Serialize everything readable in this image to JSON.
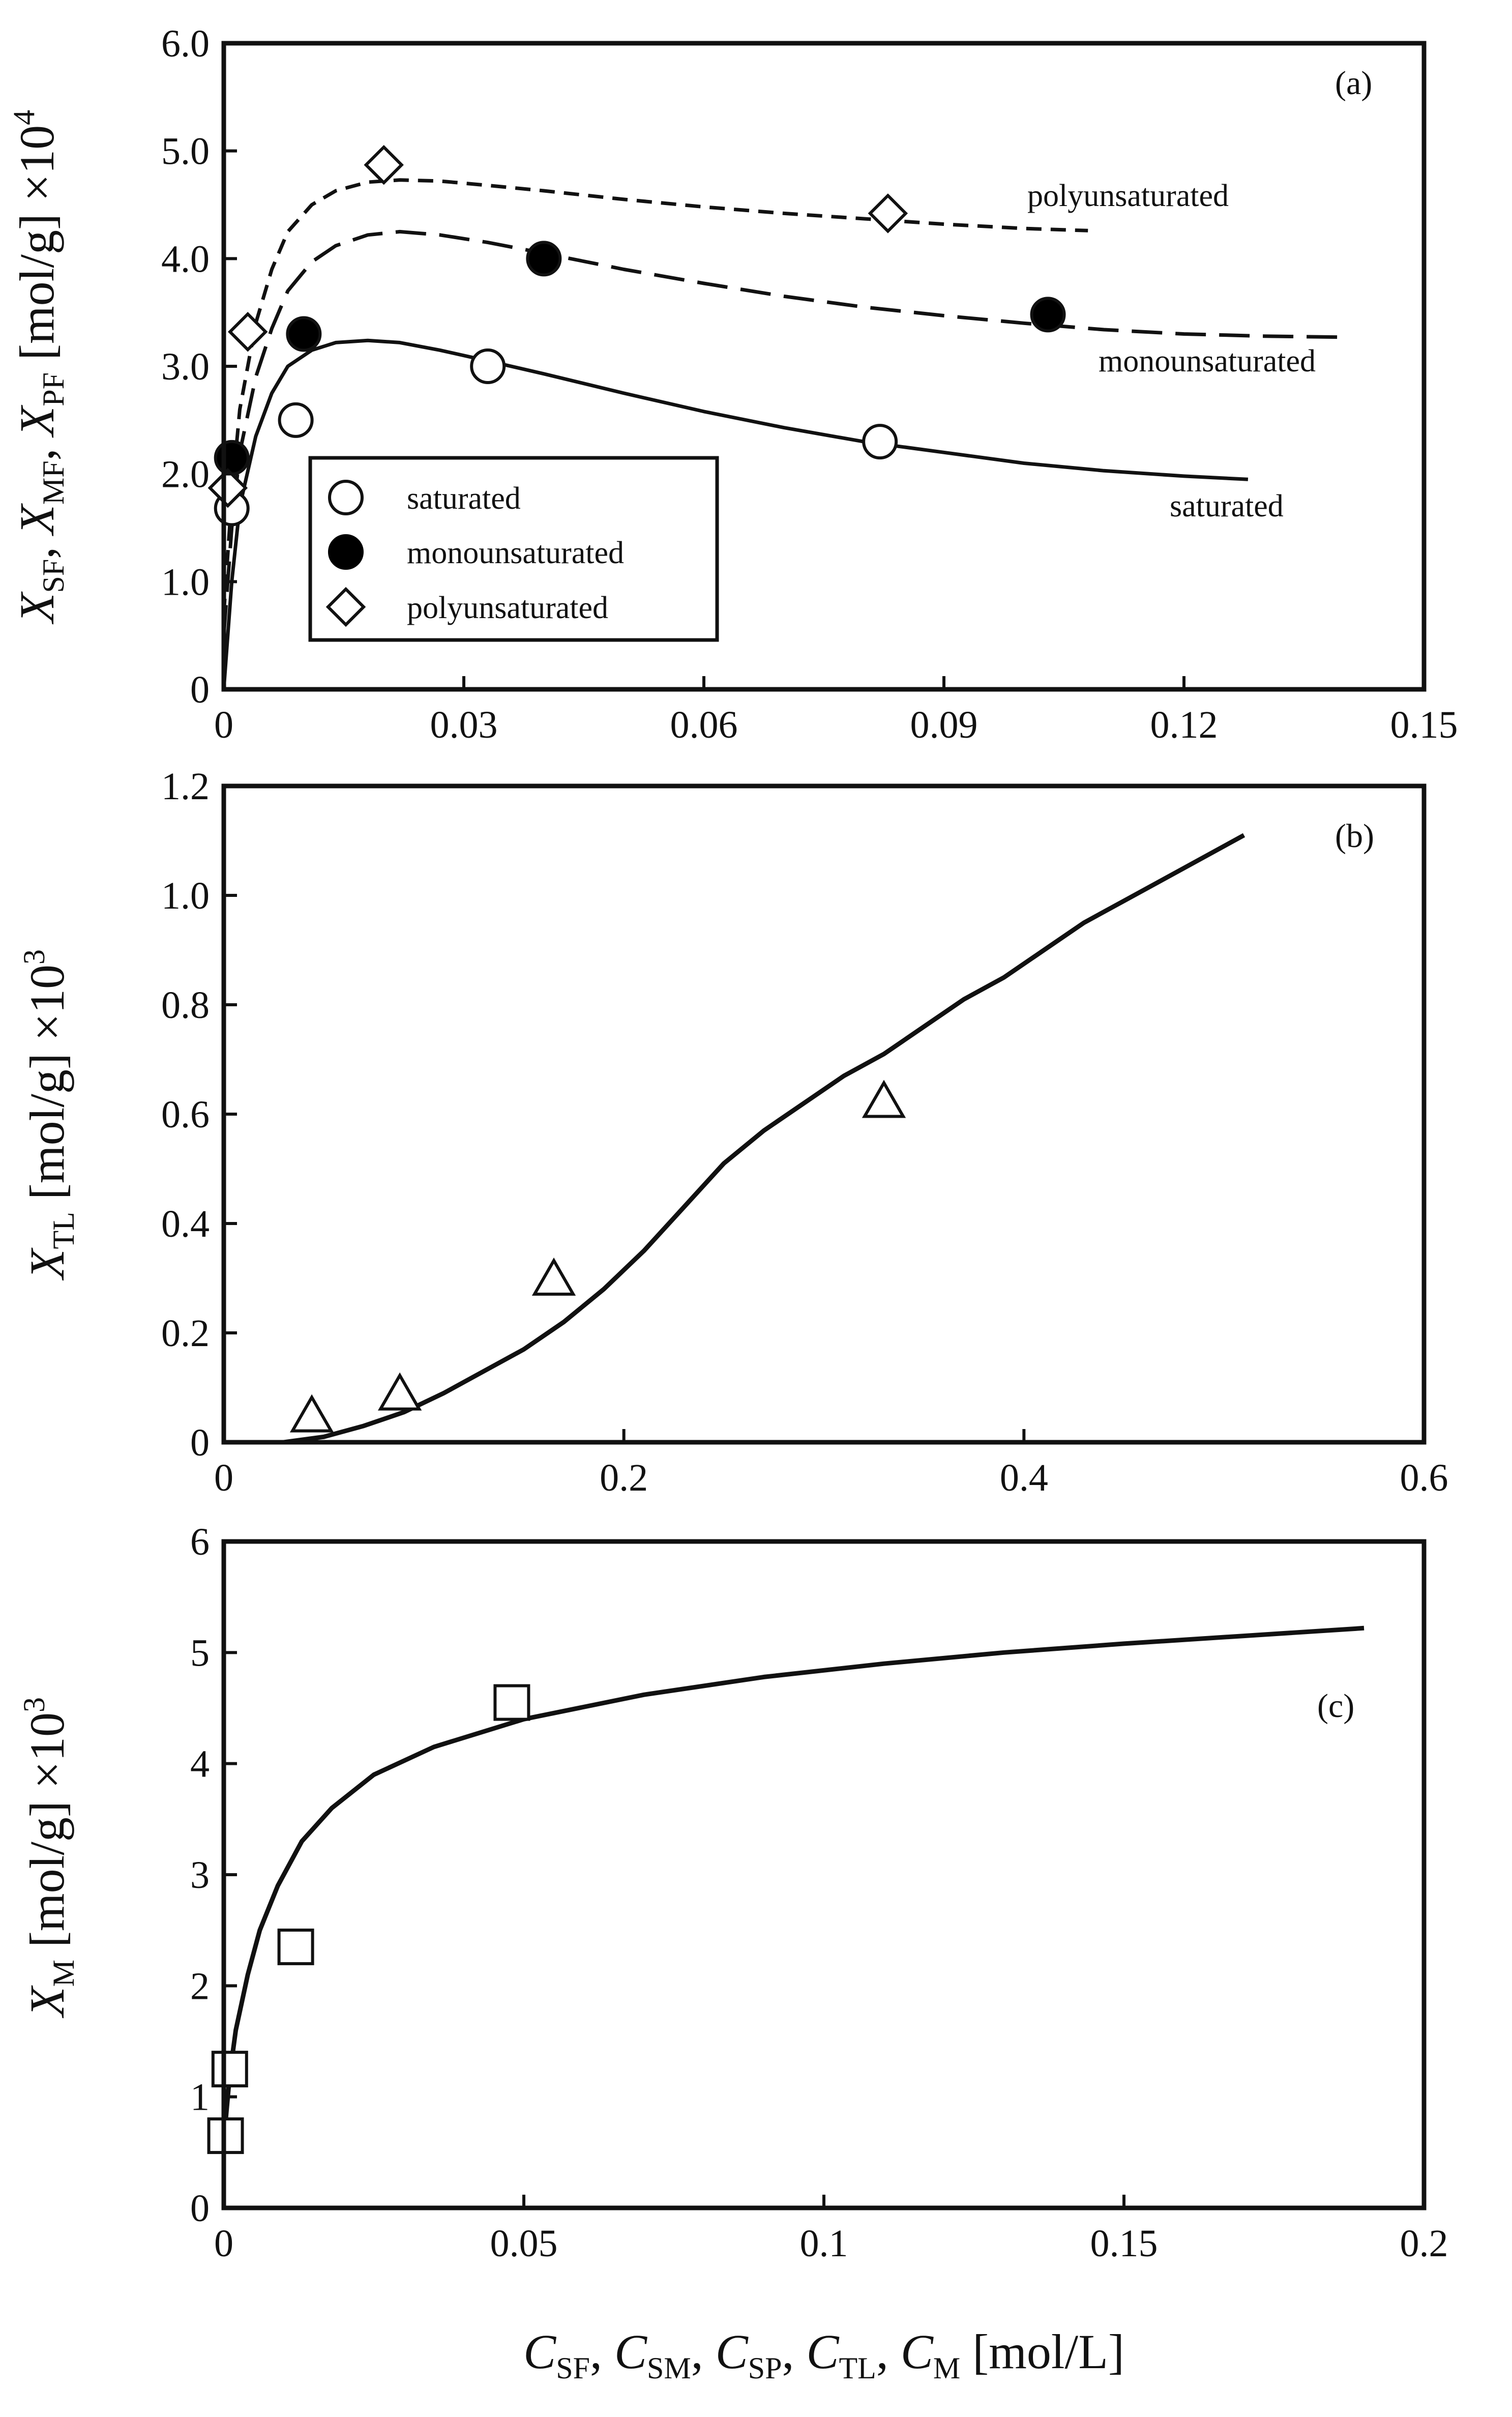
{
  "chart_data": [
    {
      "id": "a",
      "type": "scatter",
      "panel_label": "(a)",
      "xlim": [
        0,
        0.15
      ],
      "ylim": [
        0,
        6.0
      ],
      "xticks": [
        "0",
        "0.03",
        "0.06",
        "0.09",
        "0.12",
        "0.15"
      ],
      "yticks": [
        "0",
        "1.0",
        "2.0",
        "3.0",
        "4.0",
        "5.0",
        "6.0"
      ],
      "ylabel": "X_SF, X_MF, X_PF [mol/g] ×10^4",
      "ylabel_parts": {
        "X1": "X",
        "s1": "SF",
        "X2": "X",
        "s2": "MF",
        "X3": "X",
        "s3": "PF",
        "unit": "[mol/g] ×10",
        "exp": "4"
      },
      "legend_position": "lower-left",
      "legend": [
        {
          "label": "saturated",
          "marker": "open-circle"
        },
        {
          "label": "monounsaturated",
          "marker": "filled-circle"
        },
        {
          "label": "polyunsaturated",
          "marker": "open-diamond"
        }
      ],
      "series": [
        {
          "name": "saturated",
          "marker": "open-circle",
          "points": [
            [
              0.001,
              1.68
            ],
            [
              0.009,
              2.5
            ],
            [
              0.033,
              3.0
            ],
            [
              0.082,
              2.3
            ]
          ],
          "curve_style": "solid",
          "curve_label": "saturated",
          "curve": [
            [
              0,
              0
            ],
            [
              0.001,
              1.0
            ],
            [
              0.002,
              1.7
            ],
            [
              0.004,
              2.35
            ],
            [
              0.006,
              2.75
            ],
            [
              0.008,
              3.0
            ],
            [
              0.011,
              3.15
            ],
            [
              0.014,
              3.22
            ],
            [
              0.018,
              3.24
            ],
            [
              0.022,
              3.22
            ],
            [
              0.027,
              3.15
            ],
            [
              0.033,
              3.05
            ],
            [
              0.04,
              2.93
            ],
            [
              0.05,
              2.75
            ],
            [
              0.06,
              2.58
            ],
            [
              0.07,
              2.43
            ],
            [
              0.08,
              2.3
            ],
            [
              0.09,
              2.2
            ],
            [
              0.1,
              2.1
            ],
            [
              0.11,
              2.03
            ],
            [
              0.12,
              1.98
            ],
            [
              0.128,
              1.95
            ]
          ]
        },
        {
          "name": "monounsaturated",
          "marker": "filled-circle",
          "points": [
            [
              0.001,
              2.15
            ],
            [
              0.01,
              3.3
            ],
            [
              0.04,
              4.0
            ],
            [
              0.103,
              3.48
            ]
          ],
          "curve_style": "dashed",
          "curve_label": "monounsaturated",
          "curve": [
            [
              0,
              0.5
            ],
            [
              0.001,
              1.5
            ],
            [
              0.002,
              2.2
            ],
            [
              0.004,
              2.9
            ],
            [
              0.006,
              3.35
            ],
            [
              0.008,
              3.7
            ],
            [
              0.011,
              3.97
            ],
            [
              0.014,
              4.12
            ],
            [
              0.018,
              4.22
            ],
            [
              0.022,
              4.25
            ],
            [
              0.027,
              4.22
            ],
            [
              0.033,
              4.15
            ],
            [
              0.04,
              4.05
            ],
            [
              0.05,
              3.9
            ],
            [
              0.06,
              3.77
            ],
            [
              0.07,
              3.65
            ],
            [
              0.08,
              3.55
            ],
            [
              0.09,
              3.47
            ],
            [
              0.1,
              3.4
            ],
            [
              0.11,
              3.34
            ],
            [
              0.12,
              3.3
            ],
            [
              0.13,
              3.28
            ],
            [
              0.14,
              3.27
            ]
          ]
        },
        {
          "name": "polyunsaturated",
          "marker": "open-diamond",
          "points": [
            [
              0.0005,
              1.87
            ],
            [
              0.003,
              3.32
            ],
            [
              0.02,
              4.87
            ],
            [
              0.083,
              4.42
            ]
          ],
          "curve_style": "short-dashed",
          "curve_label": "polyunsaturated",
          "curve": [
            [
              0,
              0.7
            ],
            [
              0.001,
              1.8
            ],
            [
              0.002,
              2.6
            ],
            [
              0.004,
              3.4
            ],
            [
              0.006,
              3.9
            ],
            [
              0.008,
              4.25
            ],
            [
              0.011,
              4.5
            ],
            [
              0.014,
              4.63
            ],
            [
              0.018,
              4.71
            ],
            [
              0.022,
              4.73
            ],
            [
              0.027,
              4.72
            ],
            [
              0.033,
              4.68
            ],
            [
              0.04,
              4.63
            ],
            [
              0.05,
              4.55
            ],
            [
              0.06,
              4.48
            ],
            [
              0.07,
              4.42
            ],
            [
              0.08,
              4.37
            ],
            [
              0.09,
              4.32
            ],
            [
              0.1,
              4.28
            ],
            [
              0.108,
              4.26
            ]
          ]
        }
      ]
    },
    {
      "id": "b",
      "type": "scatter",
      "panel_label": "(b)",
      "xlim": [
        0,
        0.6
      ],
      "ylim": [
        0,
        1.2
      ],
      "xticks": [
        "0",
        "0.2",
        "0.4",
        "0.6"
      ],
      "yticks": [
        "0",
        "0.2",
        "0.4",
        "0.6",
        "0.8",
        "1.0",
        "1.2"
      ],
      "ylabel": "X_TL [mol/g] ×10^3",
      "ylabel_parts": {
        "X1": "X",
        "s1": "TL",
        "unit": "[mol/g] ×10",
        "exp": "3"
      },
      "series": [
        {
          "name": "TL",
          "marker": "open-triangle",
          "points": [
            [
              0.044,
              0.045
            ],
            [
              0.088,
              0.085
            ],
            [
              0.165,
              0.295
            ],
            [
              0.33,
              0.62
            ]
          ],
          "curve_style": "solid",
          "curve": [
            [
              0.03,
              0.0
            ],
            [
              0.05,
              0.01
            ],
            [
              0.07,
              0.03
            ],
            [
              0.09,
              0.055
            ],
            [
              0.11,
              0.09
            ],
            [
              0.13,
              0.13
            ],
            [
              0.15,
              0.17
            ],
            [
              0.17,
              0.22
            ],
            [
              0.19,
              0.28
            ],
            [
              0.21,
              0.35
            ],
            [
              0.23,
              0.43
            ],
            [
              0.25,
              0.51
            ],
            [
              0.27,
              0.57
            ],
            [
              0.29,
              0.62
            ],
            [
              0.31,
              0.67
            ],
            [
              0.33,
              0.71
            ],
            [
              0.35,
              0.76
            ],
            [
              0.37,
              0.81
            ],
            [
              0.39,
              0.85
            ],
            [
              0.41,
              0.9
            ],
            [
              0.43,
              0.95
            ],
            [
              0.45,
              0.99
            ],
            [
              0.47,
              1.03
            ],
            [
              0.49,
              1.07
            ],
            [
              0.51,
              1.11
            ]
          ]
        }
      ]
    },
    {
      "id": "c",
      "type": "scatter",
      "panel_label": "(c)",
      "xlim": [
        0,
        0.2
      ],
      "ylim": [
        0,
        6
      ],
      "xticks": [
        "0",
        "0.05",
        "0.1",
        "0.15",
        "0.2"
      ],
      "yticks": [
        "0",
        "1",
        "2",
        "3",
        "4",
        "5",
        "6"
      ],
      "ylabel": "X_M [mol/g] ×10^3",
      "ylabel_parts": {
        "X1": "X",
        "s1": "M",
        "unit": "[mol/g] ×10",
        "exp": "3"
      },
      "series": [
        {
          "name": "M",
          "marker": "open-square",
          "points": [
            [
              0.0003,
              0.65
            ],
            [
              0.001,
              1.25
            ],
            [
              0.012,
              2.35
            ],
            [
              0.048,
              4.55
            ]
          ],
          "curve_style": "solid",
          "curve": [
            [
              0,
              0.6
            ],
            [
              0.001,
              1.2
            ],
            [
              0.002,
              1.6
            ],
            [
              0.004,
              2.1
            ],
            [
              0.006,
              2.5
            ],
            [
              0.009,
              2.9
            ],
            [
              0.013,
              3.3
            ],
            [
              0.018,
              3.6
            ],
            [
              0.025,
              3.9
            ],
            [
              0.035,
              4.15
            ],
            [
              0.05,
              4.4
            ],
            [
              0.07,
              4.62
            ],
            [
              0.09,
              4.78
            ],
            [
              0.11,
              4.9
            ],
            [
              0.13,
              5.0
            ],
            [
              0.15,
              5.08
            ],
            [
              0.17,
              5.15
            ],
            [
              0.19,
              5.22
            ]
          ]
        }
      ]
    }
  ],
  "xlabel": "C_SF, C_SM, C_SP, C_TL, C_M [mol/L]",
  "xlabel_parts": {
    "C1": "C",
    "s1": "SF",
    "C2": "C",
    "s2": "SM",
    "C3": "C",
    "s3": "SP",
    "C4": "C",
    "s4": "TL",
    "C5": "C",
    "s5": "M",
    "unit": "[mol/L]"
  }
}
